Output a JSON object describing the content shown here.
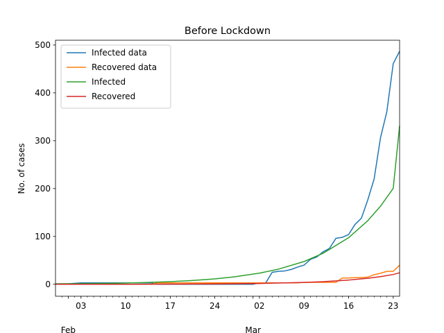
{
  "chart_data": {
    "type": "line",
    "title": "Before Lockdown",
    "xlabel": "",
    "ylabel": "No. of cases",
    "x_start": "2020-01-30",
    "x_end": "2020-03-24",
    "ylim": [
      -25,
      510
    ],
    "yticks": [
      0,
      100,
      200,
      300,
      400,
      500
    ],
    "xticks": [
      {
        "label": "03",
        "date": "2020-02-03"
      },
      {
        "label": "10",
        "date": "2020-02-10"
      },
      {
        "label": "17",
        "date": "2020-02-17"
      },
      {
        "label": "24",
        "date": "2020-02-24"
      },
      {
        "label": "02",
        "date": "2020-03-02"
      },
      {
        "label": "09",
        "date": "2020-03-09"
      },
      {
        "label": "16",
        "date": "2020-03-16"
      },
      {
        "label": "23",
        "date": "2020-03-23"
      }
    ],
    "month_labels": [
      {
        "label": "Feb",
        "date": "2020-02-01"
      },
      {
        "label": "Mar",
        "date": "2020-03-01"
      }
    ],
    "legend_position": "upper-left",
    "grid": false,
    "series": [
      {
        "name": "Infected data",
        "color": "#1f77b4",
        "points": [
          [
            "2020-01-30",
            1
          ],
          [
            "2020-01-31",
            1
          ],
          [
            "2020-02-01",
            1
          ],
          [
            "2020-02-02",
            2
          ],
          [
            "2020-02-03",
            3
          ],
          [
            "2020-02-04",
            3
          ],
          [
            "2020-02-05",
            3
          ],
          [
            "2020-02-06",
            3
          ],
          [
            "2020-02-07",
            3
          ],
          [
            "2020-02-08",
            3
          ],
          [
            "2020-02-09",
            3
          ],
          [
            "2020-02-10",
            3
          ],
          [
            "2020-02-11",
            3
          ],
          [
            "2020-02-12",
            3
          ],
          [
            "2020-02-13",
            3
          ],
          [
            "2020-02-14",
            3
          ],
          [
            "2020-02-15",
            0
          ],
          [
            "2020-02-16",
            0
          ],
          [
            "2020-02-17",
            0
          ],
          [
            "2020-02-18",
            0
          ],
          [
            "2020-02-19",
            0
          ],
          [
            "2020-02-20",
            0
          ],
          [
            "2020-02-21",
            0
          ],
          [
            "2020-02-22",
            0
          ],
          [
            "2020-02-23",
            0
          ],
          [
            "2020-02-24",
            0
          ],
          [
            "2020-02-25",
            0
          ],
          [
            "2020-02-26",
            0
          ],
          [
            "2020-02-27",
            0
          ],
          [
            "2020-02-28",
            0
          ],
          [
            "2020-02-29",
            0
          ],
          [
            "2020-03-01",
            0
          ],
          [
            "2020-03-02",
            3
          ],
          [
            "2020-03-03",
            3
          ],
          [
            "2020-03-04",
            25
          ],
          [
            "2020-03-05",
            27
          ],
          [
            "2020-03-06",
            28
          ],
          [
            "2020-03-07",
            31
          ],
          [
            "2020-03-08",
            36
          ],
          [
            "2020-03-09",
            40
          ],
          [
            "2020-03-10",
            52
          ],
          [
            "2020-03-11",
            57
          ],
          [
            "2020-03-12",
            68
          ],
          [
            "2020-03-13",
            75
          ],
          [
            "2020-03-14",
            96
          ],
          [
            "2020-03-15",
            98
          ],
          [
            "2020-03-16",
            104
          ],
          [
            "2020-03-17",
            125
          ],
          [
            "2020-03-18",
            138
          ],
          [
            "2020-03-19",
            176
          ],
          [
            "2020-03-20",
            220
          ],
          [
            "2020-03-21",
            306
          ],
          [
            "2020-03-22",
            361
          ],
          [
            "2020-03-23",
            461
          ],
          [
            "2020-03-24",
            487
          ]
        ]
      },
      {
        "name": "Recovered data",
        "color": "#ff7f0e",
        "points": [
          [
            "2020-01-30",
            0
          ],
          [
            "2020-02-14",
            0
          ],
          [
            "2020-02-15",
            3
          ],
          [
            "2020-03-01",
            3
          ],
          [
            "2020-03-08",
            3
          ],
          [
            "2020-03-09",
            4
          ],
          [
            "2020-03-13",
            4
          ],
          [
            "2020-03-14",
            4
          ],
          [
            "2020-03-15",
            13
          ],
          [
            "2020-03-16",
            13
          ],
          [
            "2020-03-17",
            14
          ],
          [
            "2020-03-18",
            14
          ],
          [
            "2020-03-19",
            15
          ],
          [
            "2020-03-20",
            20
          ],
          [
            "2020-03-21",
            23
          ],
          [
            "2020-03-22",
            27
          ],
          [
            "2020-03-23",
            27
          ],
          [
            "2020-03-24",
            40
          ]
        ]
      },
      {
        "name": "Infected",
        "color": "#2ca02c",
        "points": [
          [
            "2020-01-30",
            0.9
          ],
          [
            "2020-02-03",
            1.2
          ],
          [
            "2020-02-06",
            1.7
          ],
          [
            "2020-02-10",
            2.6
          ],
          [
            "2020-02-13",
            3.7
          ],
          [
            "2020-02-17",
            5.5
          ],
          [
            "2020-02-20",
            7.5
          ],
          [
            "2020-02-24",
            11.3
          ],
          [
            "2020-02-27",
            15.4
          ],
          [
            "2020-03-02",
            23.2
          ],
          [
            "2020-03-05",
            31.6
          ],
          [
            "2020-03-09",
            47.5
          ],
          [
            "2020-03-12",
            64.8
          ],
          [
            "2020-03-16",
            97.3
          ],
          [
            "2020-03-19",
            132.8
          ],
          [
            "2020-03-21",
            163.1
          ],
          [
            "2020-03-23",
            200.4
          ],
          [
            "2020-03-24",
            331
          ]
        ]
      },
      {
        "name": "Recovered",
        "color": "#d62728",
        "points": [
          [
            "2020-01-30",
            0
          ],
          [
            "2020-02-10",
            0.1
          ],
          [
            "2020-02-17",
            0.3
          ],
          [
            "2020-02-24",
            0.8
          ],
          [
            "2020-03-02",
            1.7
          ],
          [
            "2020-03-09",
            3.8
          ],
          [
            "2020-03-12",
            5.4
          ],
          [
            "2020-03-16",
            8.8
          ],
          [
            "2020-03-19",
            12.6
          ],
          [
            "2020-03-21",
            16.0
          ],
          [
            "2020-03-23",
            20.4
          ],
          [
            "2020-03-24",
            24
          ]
        ]
      }
    ]
  }
}
